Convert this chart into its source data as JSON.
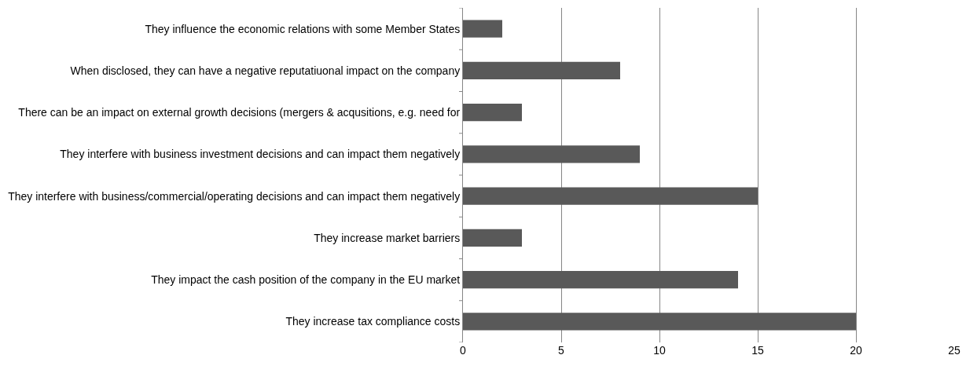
{
  "chart_data": {
    "type": "bar",
    "orientation": "horizontal",
    "categories": [
      "They influence the economic relations with some Member States",
      "When disclosed, they can have a negative reputatiuonal impact on the company",
      "There can be an impact on external growth decisions (mergers & acqusitions, e.g. need for",
      "They interfere with business investment decisions and can impact them negatively",
      "They interfere with business/commercial/operating decisions and can impact them negatively",
      "They increase market barriers",
      "They impact the cash position of the company in the EU market",
      "They increase tax compliance costs"
    ],
    "values": [
      2,
      8,
      3,
      9,
      15,
      3,
      14,
      20
    ],
    "color": "#595959",
    "xlim": [
      0,
      25
    ],
    "xticks": [
      0,
      5,
      10,
      15,
      20,
      25
    ],
    "grid": "x"
  }
}
